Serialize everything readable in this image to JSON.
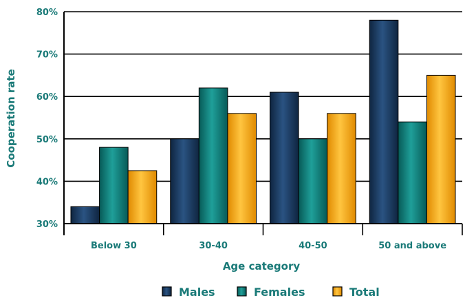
{
  "chart_data": {
    "type": "bar",
    "categories": [
      "Below 30",
      "30-40",
      "40-50",
      "50 and above"
    ],
    "series": [
      {
        "name": "Males",
        "values": [
          34,
          50,
          61,
          78
        ],
        "color": "#1b3a5e"
      },
      {
        "name": "Females",
        "values": [
          48,
          62,
          50,
          54
        ],
        "color": "#127a76"
      },
      {
        "name": "Total",
        "values": [
          42.5,
          56,
          56,
          65
        ],
        "color": "#f5a91b"
      }
    ],
    "title": "",
    "xlabel": "Age category",
    "ylabel": "Cooperation rate",
    "ylim": [
      30,
      80
    ],
    "yticks": [
      30,
      40,
      50,
      60,
      70,
      80
    ],
    "ytick_labels": [
      "30%",
      "40%",
      "50%",
      "60%",
      "70%",
      "80%"
    ],
    "grid": true,
    "legend_position": "bottom"
  }
}
